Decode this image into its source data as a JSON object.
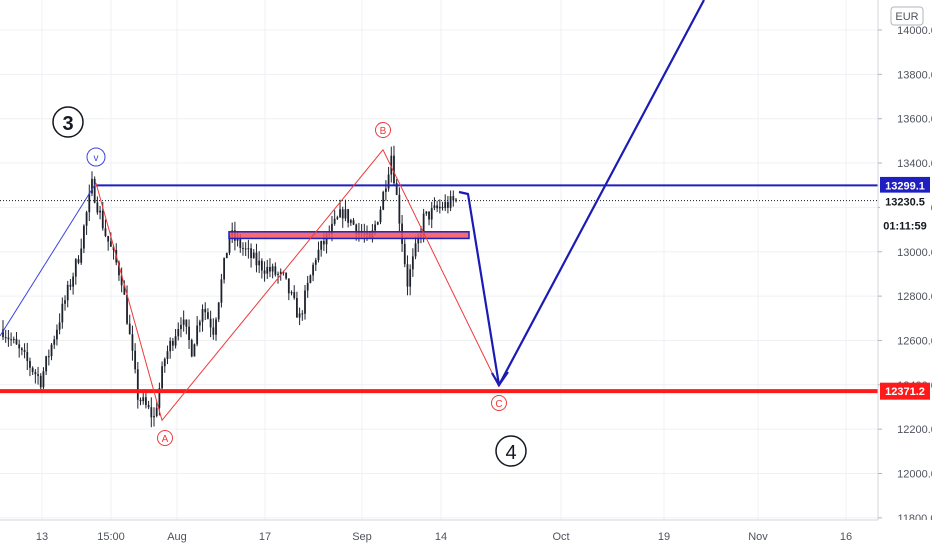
{
  "currency": "EUR",
  "chart_data": {
    "type": "candlestick",
    "y_axis": {
      "ticks": [
        "14000.0",
        "13800.0",
        "13600.0",
        "13400.0",
        "13200.0",
        "13000.0",
        "12800.0",
        "12600.0",
        "12400.0",
        "12200.0",
        "12000.0",
        "11800.0"
      ],
      "range": [
        11790,
        14120
      ]
    },
    "x_axis": {
      "ticks": [
        "13",
        "15:00",
        "Aug",
        "17",
        "Sep",
        "14",
        "Oct",
        "19",
        "Nov",
        "16"
      ]
    },
    "price_tags": {
      "resistance": "13299.1",
      "last_price": "13230.5",
      "countdown": "01:11:59",
      "support": "12371.2"
    },
    "levels": {
      "resistance": 13299.1,
      "last_price": 13230.5,
      "support": 12371.2,
      "zone": [
        13060,
        13090
      ]
    },
    "wave_labels": {
      "wave3": "3",
      "wave4": "4",
      "v": "v",
      "A": "A",
      "B": "B",
      "C": "C"
    },
    "markers": {
      "wave_v_high": 13310,
      "wave_a_low": 12240,
      "wave_b_high": 13460,
      "wave_c_target": 12390
    },
    "candles": {
      "start": 12650,
      "anchors": [
        [
          0,
          12650
        ],
        [
          14,
          12420
        ],
        [
          28,
          12980
        ],
        [
          33,
          13300
        ],
        [
          38,
          13080
        ],
        [
          44,
          12880
        ],
        [
          50,
          12350
        ],
        [
          56,
          12250
        ],
        [
          60,
          12520
        ],
        [
          66,
          12700
        ],
        [
          70,
          12560
        ],
        [
          74,
          12760
        ],
        [
          78,
          12650
        ],
        [
          84,
          13080
        ],
        [
          94,
          12950
        ],
        [
          104,
          12880
        ],
        [
          110,
          12700
        ],
        [
          116,
          12980
        ],
        [
          126,
          13180
        ],
        [
          136,
          13040
        ],
        [
          140,
          13200
        ],
        [
          144,
          13440
        ],
        [
          150,
          12860
        ],
        [
          156,
          13150
        ],
        [
          162,
          13200
        ],
        [
          168,
          13230
        ]
      ]
    },
    "colors": {
      "resistance": "#1f1fbf",
      "support": "#ff1a1a",
      "projection": "#1b1bb5",
      "abc_lines": "#ee3b3b",
      "wave_v_line": "#3d45e0",
      "zone_fill": "#f2545b",
      "zone_border": "#1f1fbf",
      "candle": "#1e222d",
      "grid": "#eef0f4"
    }
  }
}
